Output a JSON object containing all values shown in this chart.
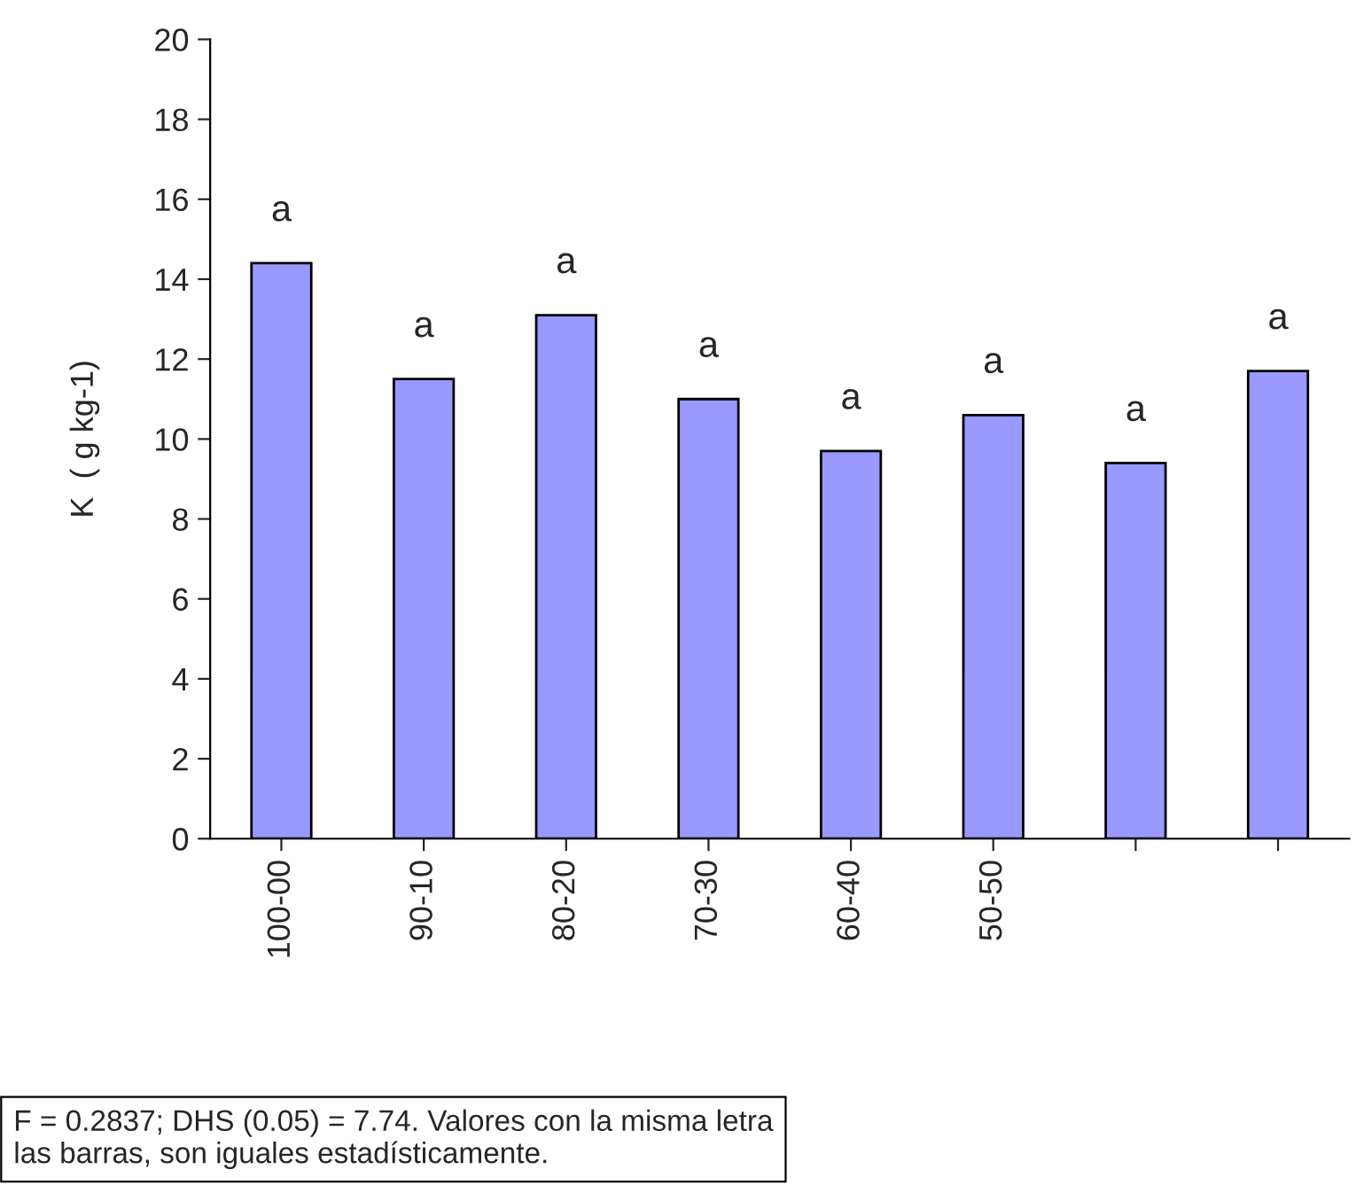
{
  "chart_data": {
    "type": "bar",
    "ylabel": "K  ( g kg-1)",
    "categories": [
      "100-00",
      "90-10",
      "80-20",
      "70-30",
      "60-40",
      "50-50",
      null,
      null
    ],
    "values": [
      14.4,
      11.5,
      13.1,
      11.0,
      9.7,
      10.6,
      9.4,
      11.7
    ],
    "value_labels": [
      "a",
      "a",
      "a",
      "a",
      "a",
      "a",
      "a",
      "a"
    ],
    "color": "#9999ff",
    "ylim": [
      0,
      20
    ],
    "yticks": [
      0,
      2,
      4,
      6,
      8,
      10,
      12,
      14,
      16,
      18,
      20
    ],
    "grid": false,
    "legend": false,
    "annotations": [
      "F = 0.2837; DHS (0.05) = 7.74. Valores con la misma letra\nlas barras, son iguales estadísticamente."
    ]
  }
}
